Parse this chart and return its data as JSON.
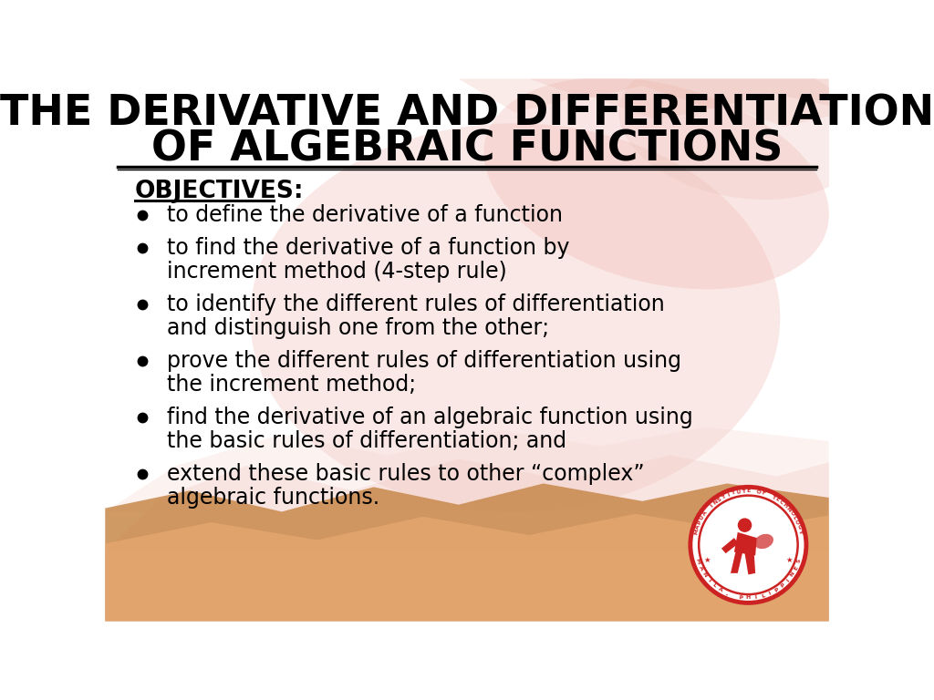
{
  "title_line1": "THE DERIVATIVE AND DIFFERENTIATION",
  "title_line2": "OF ALGEBRAIC FUNCTIONS",
  "objectives_label": "OBJECTIVES:",
  "bullets": [
    [
      "to define the derivative of a function"
    ],
    [
      "to find the derivative of a function by",
      "increment method (4-step rule)"
    ],
    [
      "to identify the different rules of differentiation",
      "and distinguish one from the other;"
    ],
    [
      "prove the different rules of differentiation using",
      "the increment method;"
    ],
    [
      "find the derivative of an algebraic function using",
      "the basic rules of differentiation; and"
    ],
    [
      "extend these basic rules to other “complex”",
      "algebraic functions."
    ]
  ],
  "bg_color": "#ffffff",
  "title_color": "#000000",
  "text_color": "#000000",
  "logo_color": "#cc2222"
}
